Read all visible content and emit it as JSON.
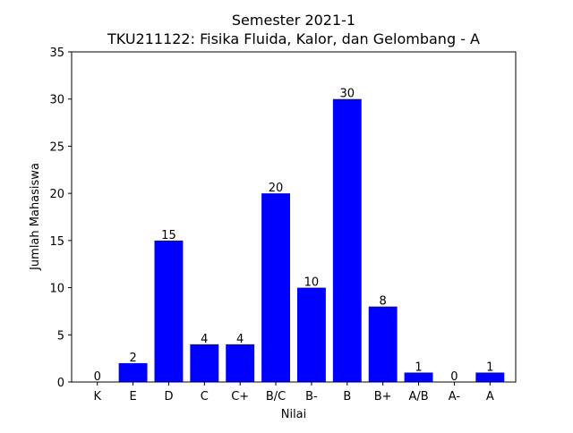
{
  "chart_data": {
    "type": "bar",
    "title": "Semester 2021-1",
    "subtitle": "TKU211122: Fisika Fluida, Kalor, dan Gelombang - A",
    "xlabel": "Nilai",
    "ylabel": "Jumlah Mahasiswa",
    "categories": [
      "K",
      "E",
      "D",
      "C",
      "C+",
      "B/C",
      "B-",
      "B",
      "B+",
      "A/B",
      "A-",
      "A"
    ],
    "values": [
      0,
      2,
      15,
      4,
      4,
      20,
      10,
      30,
      8,
      1,
      0,
      1
    ],
    "ylim": [
      0,
      35
    ],
    "yticks": [
      0,
      5,
      10,
      15,
      20,
      25,
      30,
      35
    ],
    "bar_color": "#0000ff",
    "grid": false,
    "legend": false
  }
}
